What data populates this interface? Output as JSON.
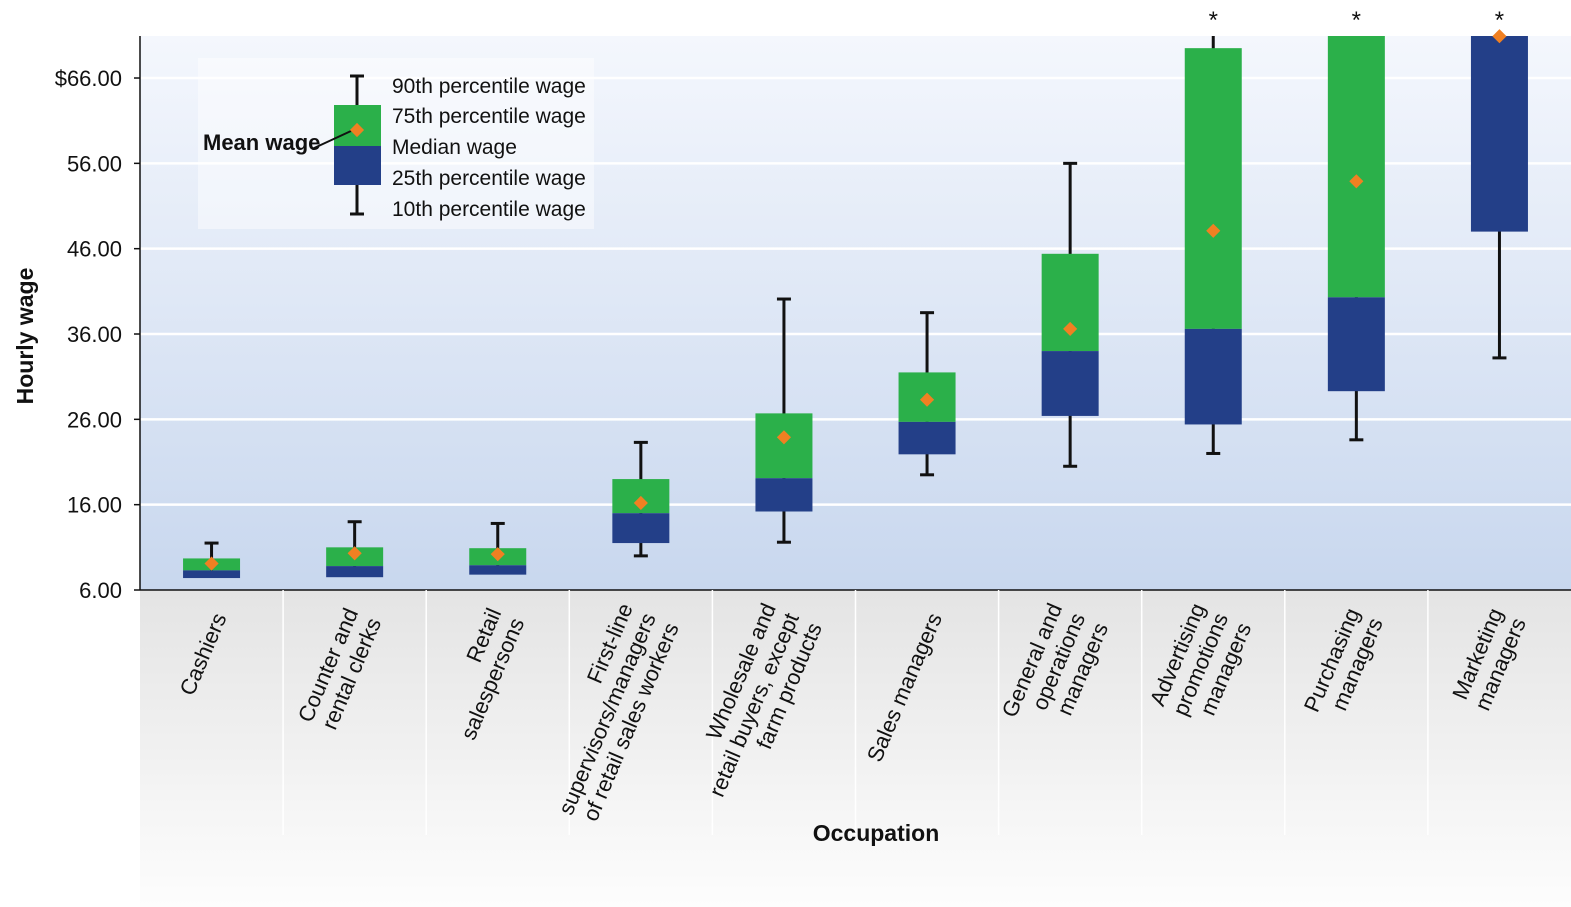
{
  "chart_data": {
    "type": "box",
    "ylabel": "Hourly wage",
    "xlabel": "Occupation",
    "ylim": [
      6,
      72
    ],
    "yticks": [
      "6.00",
      "16.00",
      "26.00",
      "36.00",
      "46.00",
      "56.00",
      "$66.00"
    ],
    "ytick_values": [
      6,
      16,
      26,
      36,
      46,
      56,
      66
    ],
    "grid": true,
    "colors": {
      "upper_box": "#2bb04a",
      "lower_box": "#233f88",
      "mean_marker": "#f08022",
      "whisker": "#111111"
    },
    "legend": {
      "placement": "top-left",
      "mean_label": "Mean wage",
      "items": [
        "90th percentile wage",
        "75th percentile wage",
        "Median wage",
        "25th percentile wage",
        "10th percentile wage"
      ]
    },
    "categories": [
      {
        "lines": [
          "Cashiers"
        ],
        "p10": 7.8,
        "p25": 7.4,
        "median": 8.3,
        "p75": 9.7,
        "p90": 11.5,
        "mean": 9.1,
        "star": ""
      },
      {
        "lines": [
          "Counter and",
          "rental clerks"
        ],
        "p10": 7.9,
        "p25": 7.5,
        "median": 8.8,
        "p75": 11.0,
        "p90": 14.0,
        "mean": 10.3,
        "star": ""
      },
      {
        "lines": [
          "Retail",
          "salespersons"
        ],
        "p10": 8.1,
        "p25": 7.8,
        "median": 8.9,
        "p75": 10.9,
        "p90": 13.8,
        "mean": 10.2,
        "star": ""
      },
      {
        "lines": [
          "First-line",
          "supervisors/managers",
          "of retail sales workers"
        ],
        "p10": 10.0,
        "p25": 11.5,
        "median": 15.0,
        "p75": 19.0,
        "p90": 23.3,
        "mean": 16.2,
        "star": ""
      },
      {
        "lines": [
          "Wholesale and",
          "retail buyers, except",
          "farm products"
        ],
        "p10": 11.6,
        "p25": 15.2,
        "median": 19.1,
        "p75": 26.7,
        "p90": 40.1,
        "mean": 23.9,
        "star": ""
      },
      {
        "lines": [
          "Sales managers"
        ],
        "p10": 19.5,
        "p25": 21.9,
        "median": 25.7,
        "p75": 31.5,
        "p90": 38.5,
        "mean": 28.3,
        "star": ""
      },
      {
        "lines": [
          "General and",
          "operations",
          "managers"
        ],
        "p10": 20.5,
        "p25": 26.4,
        "median": 34.0,
        "p75": 45.4,
        "p90": 56.0,
        "mean": 36.6,
        "star": ""
      },
      {
        "lines": [
          "Advertising",
          "promotions",
          "managers"
        ],
        "p10": 22.0,
        "p25": 25.4,
        "median": 36.6,
        "p75": 69.5,
        "p90": 71.0,
        "mean": 48.1,
        "star": "*"
      },
      {
        "lines": [
          "Purchasing",
          "managers"
        ],
        "p10": 23.6,
        "p25": 29.3,
        "median": 40.3,
        "p75": 71.0,
        "p90": 71.0,
        "mean": 53.9,
        "star": "*"
      },
      {
        "lines": [
          "Marketing",
          "managers"
        ],
        "p10": 33.2,
        "p25": 48.0,
        "median": 71.0,
        "p75": 71.0,
        "p90": 71.0,
        "mean": 70.9,
        "star": "*"
      }
    ]
  }
}
